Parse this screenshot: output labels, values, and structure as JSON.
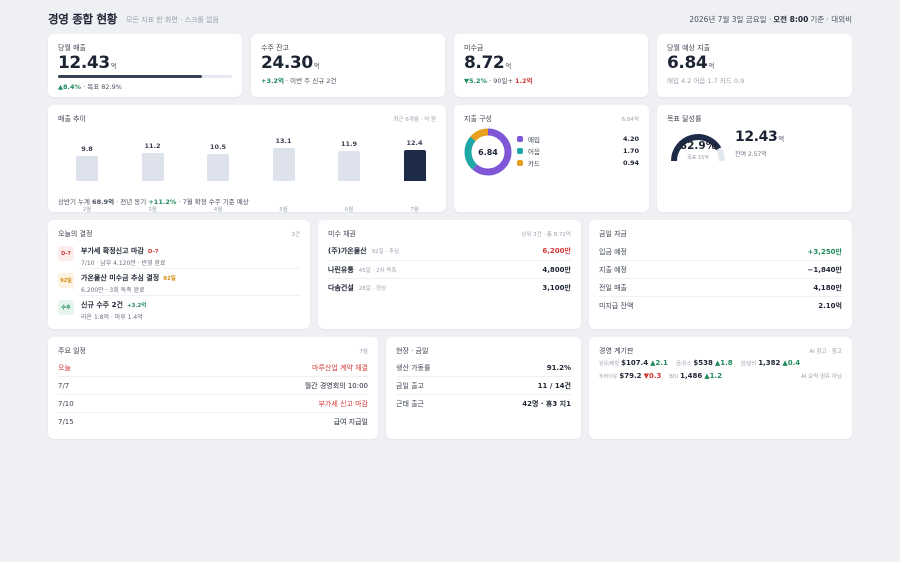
{
  "header": {
    "title": "경영 종합 현황",
    "subtitle": "모든 지표 한 화면 · 스크롤 없음",
    "date": "2026년 7월 3일 금요일 ·",
    "time": "오전 8:00",
    "basis": "기준 · 대외비"
  },
  "kpis": [
    {
      "label": "당월 매출",
      "value": "12.43",
      "unit": "억",
      "progress": 0.829,
      "note_delta": "▲8.4%",
      "note_rest": " · 목표 82.9%"
    },
    {
      "label": "수주 잔고",
      "value": "24.30",
      "unit": "억",
      "note_delta": "+3.2억",
      "note_rest": " · 이번 주 신규 2건"
    },
    {
      "label": "미수금",
      "value": "8.72",
      "unit": "억",
      "note_delta": "▼5.2%",
      "note_mid": " · 90일+ ",
      "note_red": "1.2억"
    },
    {
      "label": "당월 예상 지출",
      "value": "6.84",
      "unit": "억",
      "note_muted": "매입 4.2 어음 1.7 카드 0.9"
    }
  ],
  "sales": {
    "title": "매출 추이",
    "meta": "최근 6개월 · 억 원",
    "months": [
      "2월",
      "3월",
      "4월",
      "5월",
      "6월",
      "7월"
    ],
    "values": [
      9.8,
      11.2,
      10.5,
      13.1,
      11.9,
      12.4
    ],
    "labels": [
      "9.8",
      "11.2",
      "10.5",
      "13.1",
      "11.9",
      "12.4"
    ],
    "foot_pre": "상반기 누계",
    "foot_val": "68.9억",
    "foot_mid": "· 전년 동기",
    "foot_delta": "+11.2%",
    "foot_post": "· 7월 확정 수주 기준 예상"
  },
  "expense": {
    "title": "지출 구성",
    "meta": "6.84억",
    "center": "6.84",
    "items": [
      {
        "label": "매입",
        "value": 4.2,
        "text": "4.20",
        "color": "#7f57d6"
      },
      {
        "label": "어음",
        "value": 1.7,
        "text": "1.70",
        "color": "#1ea7a4"
      },
      {
        "label": "카드",
        "value": 0.94,
        "text": "0.94",
        "color": "#e8a11f"
      }
    ]
  },
  "goal": {
    "title": "목표 달성률",
    "percent": 0.829,
    "percent_text": "82.9%",
    "target": "목표 15억",
    "value": "12.43",
    "unit": "억",
    "remain": "잔여 2.57억"
  },
  "today": {
    "title": "오늘의 결정",
    "count": "3건",
    "items": [
      {
        "tag": "D-7",
        "title": "부가세 확정신고 마감",
        "badge": "D-7",
        "desc": "7/10 · 납부 4,120만 · 반영 완료",
        "bg": "#fdecec",
        "fg": "#d23a3a"
      },
      {
        "tag": "92일",
        "title": "가온물산 미수금 추심 결정",
        "badge": "92일",
        "desc": "6,200만 · 3회 독촉 완료",
        "bg": "#fdf3e1",
        "fg": "#d48a10"
      },
      {
        "tag": "수주",
        "title": "신규 수주 2건",
        "badge": "+3.2억",
        "desc": "라온 1.8억 · 마루 1.4억",
        "bg": "#e6f5ec",
        "fg": "#1f8a5b"
      }
    ]
  },
  "receivables": {
    "title": "미수 채권",
    "meta": "상위 3건 · 총 8.72억",
    "rows": [
      {
        "name": "(주)가온물산",
        "info": "92일 · 추심",
        "value": "6,200만",
        "red": true
      },
      {
        "name": "나린유통",
        "info": "45일 · 2차 독촉",
        "value": "4,800만",
        "red": false
      },
      {
        "name": "다솜건설",
        "info": "28일 · 정상",
        "value": "3,100만",
        "red": false
      }
    ]
  },
  "cash": {
    "title": "금일 자금",
    "rows": [
      {
        "label": "입금 예정",
        "value": "+3,250만",
        "green": true
      },
      {
        "label": "지출 예정",
        "value": "−1,840만",
        "green": false
      },
      {
        "label": "전일 매출",
        "value": "4,180만",
        "green": false
      },
      {
        "label": "미지급 잔액",
        "value": "2.10억",
        "green": false
      }
    ]
  },
  "schedule": {
    "title": "주요 일정",
    "month": "7월",
    "rows": [
      {
        "date": "오늘",
        "event": "마루산업 계약 체결",
        "red": true
      },
      {
        "date": "7/7",
        "event": "월간 경영회의 10:00",
        "red": false
      },
      {
        "date": "7/10",
        "event": "부가세 신고 마감",
        "red": true
      },
      {
        "date": "7/15",
        "event": "급여 지급일",
        "red": false
      }
    ]
  },
  "site": {
    "title": "현장 · 금일",
    "rows": [
      {
        "label": "생산 가동률",
        "value": "91.2%"
      },
      {
        "label": "금일 출고",
        "value": "11 / 14건"
      },
      {
        "label": "근태 출근",
        "value": "42명 · 휴3 지1"
      }
    ]
  },
  "econ": {
    "title": "경영 계기판",
    "meta": "AI 참고 · 참고",
    "items": [
      {
        "key": "원유/배럴",
        "value": "$107.4",
        "delta": "▲2.1",
        "up": true
      },
      {
        "key": "금/온스",
        "value": "$538",
        "delta": "▲1.8",
        "up": true
      },
      {
        "key": "원/달러",
        "value": "1,382",
        "delta": "▲0.4",
        "up": true
      },
      {
        "key": "두바이유",
        "value": "$79.2",
        "delta": "▼0.3",
        "up": false
      },
      {
        "key": "BDI",
        "value": "1,486",
        "delta": "▲1.2",
        "up": true
      }
    ],
    "foot": "AI 요약 권유 아님"
  }
}
